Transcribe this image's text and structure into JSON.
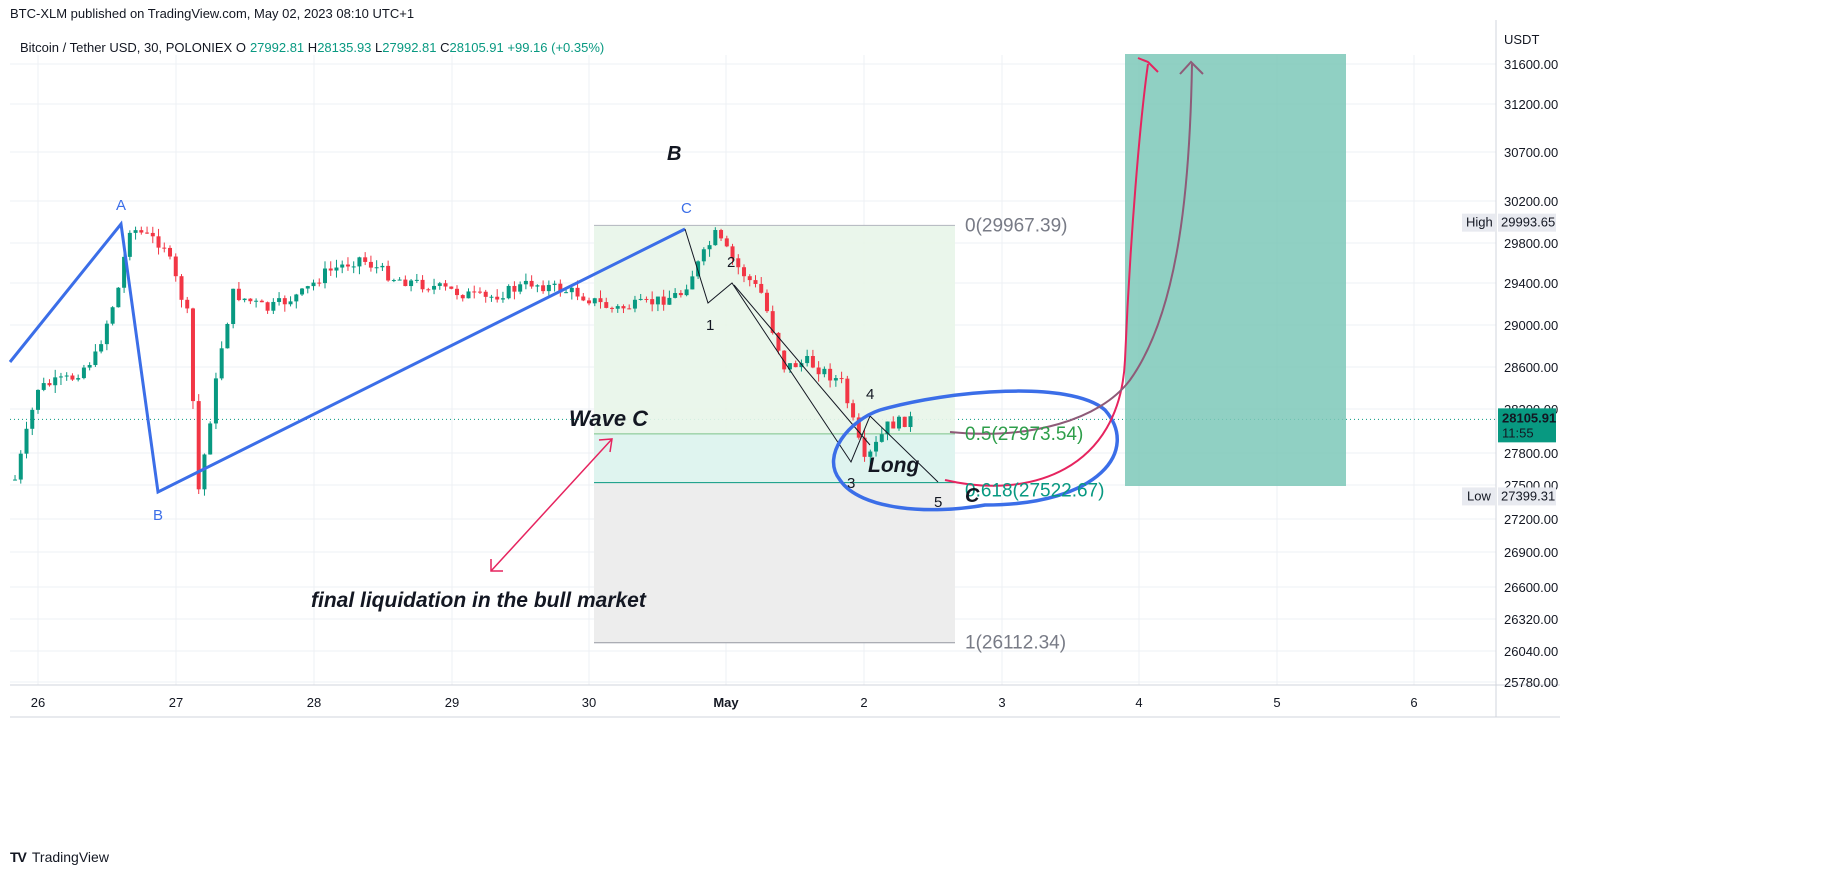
{
  "header": {
    "published": "BTC-XLM published on TradingView.com, May 02, 2023 08:10 UTC+1",
    "symbol": "Bitcoin / Tether USD, 30, POLONIEX",
    "o_key": "O",
    "o_val": "27992.81",
    "h_key": "H",
    "h_val": "28135.93",
    "l_key": "L",
    "l_val": "27992.81",
    "c_key": "C",
    "c_val": "28105.91",
    "change": "+99.16 (+0.35%)"
  },
  "footer": {
    "brand": "TradingView",
    "logo": "TV"
  },
  "colors": {
    "up": "#089981",
    "down": "#f23645",
    "wave": "#3b6ee8",
    "pink": "#e6245f",
    "purple": "#8e5b78",
    "fib_green": "#2e9e4a",
    "fib_label": "#787b86"
  },
  "chart_data": {
    "type": "candlestick",
    "currency": "USDT",
    "last_price": "28105.91",
    "countdown": "11:55",
    "high_label": "High",
    "high_value": "29993.65",
    "low_label": "Low",
    "low_value": "27399.31",
    "x_ticks": [
      "26",
      "27",
      "28",
      "29",
      "30",
      "May",
      "2",
      "3",
      "4",
      "5",
      "6"
    ],
    "y_ticks": [
      "31600.00",
      "31200.00",
      "30700.00",
      "30200.00",
      "29800.00",
      "29400.00",
      "29000.00",
      "28600.00",
      "28200.00",
      "27800.00",
      "27500.00",
      "27200.00",
      "26900.00",
      "26600.00",
      "26320.00",
      "26040.00",
      "25780.00"
    ],
    "price_path": [
      [
        "Apr 25 20:00",
        27550
      ],
      [
        "Apr 26 00:00",
        28400
      ],
      [
        "Apr 26 06:00",
        28500
      ],
      [
        "Apr 26 10:00",
        28700
      ],
      [
        "Apr 26 14:00",
        29350
      ],
      [
        "Apr 26 16:00",
        29950
      ],
      [
        "Apr 26 22:00",
        29780
      ],
      [
        "Apr 27 02:00",
        29100
      ],
      [
        "Apr 27 04:00",
        27450
      ],
      [
        "Apr 27 08:00",
        28800
      ],
      [
        "Apr 27 10:00",
        29300
      ],
      [
        "Apr 27 16:00",
        29150
      ],
      [
        "Apr 27 22:00",
        29300
      ],
      [
        "Apr 28 02:00",
        29500
      ],
      [
        "Apr 28 08:00",
        29650
      ],
      [
        "Apr 28 14:00",
        29450
      ],
      [
        "Apr 28 22:00",
        29350
      ],
      [
        "Apr 29 06:00",
        29250
      ],
      [
        "Apr 29 14:00",
        29400
      ],
      [
        "Apr 29 22:00",
        29300
      ],
      [
        "Apr 30 04:00",
        29150
      ],
      [
        "Apr 30 10:00",
        29200
      ],
      [
        "Apr 30 16:00",
        29300
      ],
      [
        "Apr 30 22:00",
        29880
      ],
      [
        "May 01 02:00",
        29550
      ],
      [
        "May 01 06:00",
        29300
      ],
      [
        "May 01 10:00",
        28600
      ],
      [
        "May 01 14:00",
        28650
      ],
      [
        "May 01 20:00",
        28450
      ],
      [
        "May 02 00:00",
        27700
      ],
      [
        "May 02 04:00",
        28050
      ],
      [
        "May 02 08:00",
        28105
      ]
    ],
    "fib": {
      "levels": [
        {
          "label": "0(29967.39)",
          "value": 29967.39
        },
        {
          "label": "0.5(27973.54)",
          "value": 27973.54
        },
        {
          "label": "0.618(27522.67)",
          "value": 27522.67
        },
        {
          "label": "1(26112.34)",
          "value": 26112.34
        }
      ]
    },
    "annotations": {
      "wave_a": "A",
      "wave_b": "B",
      "wave_c": "C",
      "big_b": "B",
      "big_c": "C",
      "count": [
        "1",
        "2",
        "3",
        "4",
        "5"
      ],
      "wave_c_text": "Wave C",
      "long_text": "Long",
      "final_text": "final liquidation in the bull market"
    }
  }
}
